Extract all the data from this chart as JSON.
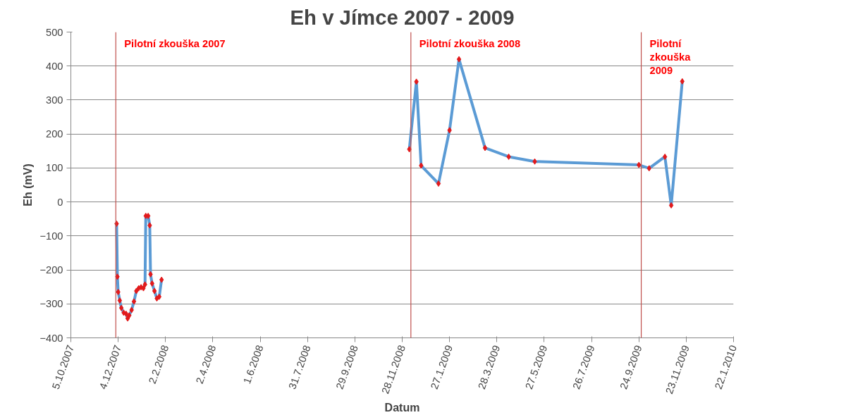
{
  "chart_data": {
    "type": "line",
    "title": "Eh v Jímce 2007 - 2009",
    "xlabel": "Datum",
    "ylabel": "Eh (mV)",
    "x": [
      "2007-12-02",
      "2007-12-03",
      "2007-12-04",
      "2007-12-06",
      "2007-12-08",
      "2007-12-11",
      "2007-12-14",
      "2007-12-16",
      "2007-12-18",
      "2007-12-21",
      "2007-12-24",
      "2007-12-27",
      "2007-12-30",
      "2008-01-02",
      "2008-01-05",
      "2008-01-07",
      "2008-01-08",
      "2008-01-11",
      "2008-01-13",
      "2008-01-14",
      "2008-01-16",
      "2008-01-19",
      "2008-01-22",
      "2008-01-25",
      "2008-01-28",
      "2008-06-01",
      "2008-12-07",
      "2008-12-16",
      "2008-12-22",
      "2009-01-13",
      "2009-01-27",
      "2009-02-08",
      "2009-03-13",
      "2009-04-12",
      "2009-05-15",
      "2009-09-24",
      "2009-10-07",
      "2009-10-27",
      "2009-11-04",
      "2009-11-18"
    ],
    "series": [
      {
        "color": "#5b9bd5",
        "colors": [
          "#e31a1c",
          "#e31a1c",
          "#e31a1c",
          "#e31a1c",
          "#e31a1c",
          "#e31a1c",
          "#e31a1c",
          "#e31a1c",
          "#e31a1c",
          "#e31a1c",
          "#e31a1c",
          "#e31a1c",
          "#e31a1c",
          "#e31a1c",
          "#e31a1c",
          "#e31a1c",
          "#e31a1c",
          "#e31a1c",
          "#e31a1c",
          "#e31a1c",
          "#e31a1c",
          "#e31a1c",
          "#e31a1c",
          "#e31a1c",
          "#e31a1c",
          null,
          "#e31a1c",
          "#e31a1c",
          "#e31a1c",
          "#e31a1c",
          "#e31a1c",
          "#e31a1c",
          "#e31a1c",
          "#e31a1c",
          "#e31a1c",
          "#e31a1c",
          "#e31a1c",
          "#e31a1c",
          "#e31a1c",
          "#e31a1c"
        ],
        "values": [
          -64,
          -220,
          -265,
          -290,
          -312,
          -326,
          -329,
          -343,
          -334,
          -318,
          -293,
          -262,
          -254,
          -251,
          -254,
          -243,
          -41,
          -41,
          -69,
          -213,
          -240,
          -262,
          -284,
          -279,
          -229,
          null,
          155,
          354,
          107,
          54,
          211,
          420,
          159,
          133,
          119,
          109,
          99,
          133,
          -10,
          355
        ]
      }
    ],
    "xlim": [
      "2007-10-05",
      "2010-01-22"
    ],
    "xticks": [
      {
        "value": "2007-10-05",
        "label": "5.10.2007"
      },
      {
        "value": "2007-12-04",
        "label": "4.12.2007"
      },
      {
        "value": "2008-02-02",
        "label": "2.2.2008"
      },
      {
        "value": "2008-04-02",
        "label": "2.4.2008"
      },
      {
        "value": "2008-06-01",
        "label": "1.6.2008"
      },
      {
        "value": "2008-07-31",
        "label": "31.7.2008"
      },
      {
        "value": "2008-09-29",
        "label": "29.9.2008"
      },
      {
        "value": "2008-11-28",
        "label": "28.11.2008"
      },
      {
        "value": "2009-01-27",
        "label": "27.1.2009"
      },
      {
        "value": "2009-03-28",
        "label": "28.3.2009"
      },
      {
        "value": "2009-05-27",
        "label": "27.5.2009"
      },
      {
        "value": "2009-07-26",
        "label": "26.7.2009"
      },
      {
        "value": "2009-09-24",
        "label": "24.9.2009"
      },
      {
        "value": "2009-11-23",
        "label": "23.11.2009"
      },
      {
        "value": "2010-01-22",
        "label": "22.1.2010"
      }
    ],
    "ylim": [
      -400,
      500
    ],
    "yticks": [
      -400,
      -300,
      -200,
      -100,
      0,
      100,
      200,
      300,
      400,
      500
    ],
    "grid": "y",
    "marker": "diamond",
    "line_style": "solid",
    "ref_lines": [
      {
        "axis": "x",
        "value": "2007-12-01",
        "label": "Pilotní zkouška 2007",
        "color": "#c0504d"
      },
      {
        "axis": "x",
        "value": "2008-12-09",
        "label": "Pilotní zkouška 2008",
        "color": "#c0504d"
      },
      {
        "axis": "x",
        "value": "2009-09-27",
        "label": "Pilotní zkouška 2009",
        "color": "#c0504d"
      }
    ]
  }
}
